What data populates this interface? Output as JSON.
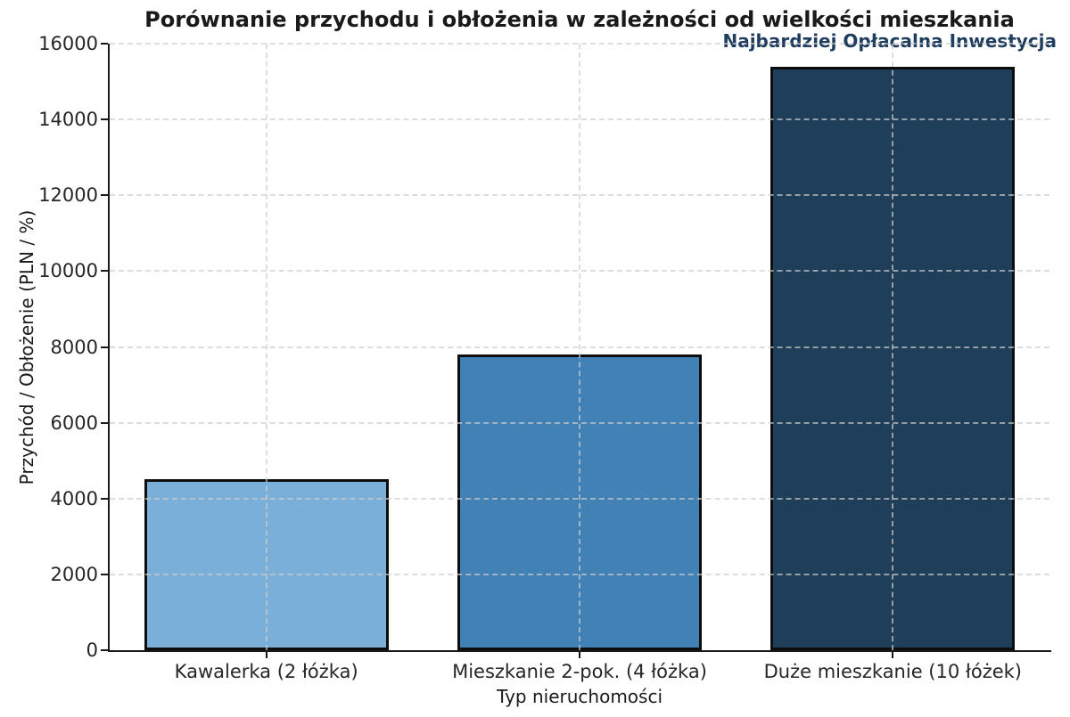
{
  "annotation": {
    "text": "Najbardziej Opłacalna Inwestycja",
    "color": "#1F3D5E"
  },
  "chart_data": {
    "type": "bar",
    "title": "Porównanie przychodu i obłożenia w zależności od wielkości mieszkania",
    "xlabel": "Typ nieruchomości",
    "ylabel": "Przychód / Obłożenie (PLN / %)",
    "categories": [
      "Kawalerka (2 łóżka)",
      "Mieszkanie 2-pok. (4 łóżka)",
      "Duże mieszkanie (10 łóżek)"
    ],
    "values": [
      4500,
      7800,
      15400
    ],
    "bar_colors": [
      "#7AAFD9",
      "#4181B5",
      "#1F3E5A"
    ],
    "bar_edge_color": "#0d0d0d",
    "ylim": [
      0,
      16000
    ],
    "yticks": [
      0,
      2000,
      4000,
      6000,
      8000,
      10000,
      12000,
      14000,
      16000
    ],
    "grid": "dashed gridlines on both axes, drawn over bars",
    "grid_color": "#cdcdcd",
    "legend": "none"
  }
}
